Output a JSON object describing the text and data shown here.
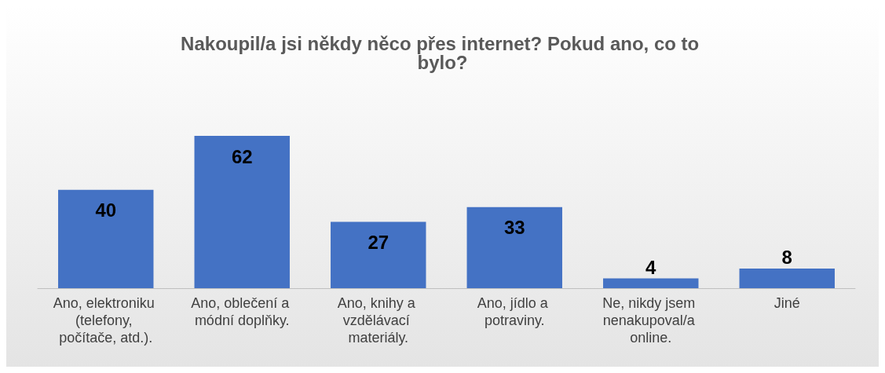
{
  "chart_data": {
    "type": "bar",
    "title": "Nakoupil/a jsi někdy něco přes internet? Pokud ano, co to bylo?",
    "categories": [
      "Ano, elektroniku (telefony, počítače, atd.).",
      "Ano, oblečení a módní doplňky.",
      "Ano, knihy a vzdělávací materiály.",
      "Ano, jídlo a potraviny.",
      "Ne, nikdy jsem nenakupoval/a online.",
      "Jiné"
    ],
    "values": [
      40,
      62,
      27,
      33,
      4,
      8
    ],
    "color": "#4472c4",
    "data_labels": true
  }
}
